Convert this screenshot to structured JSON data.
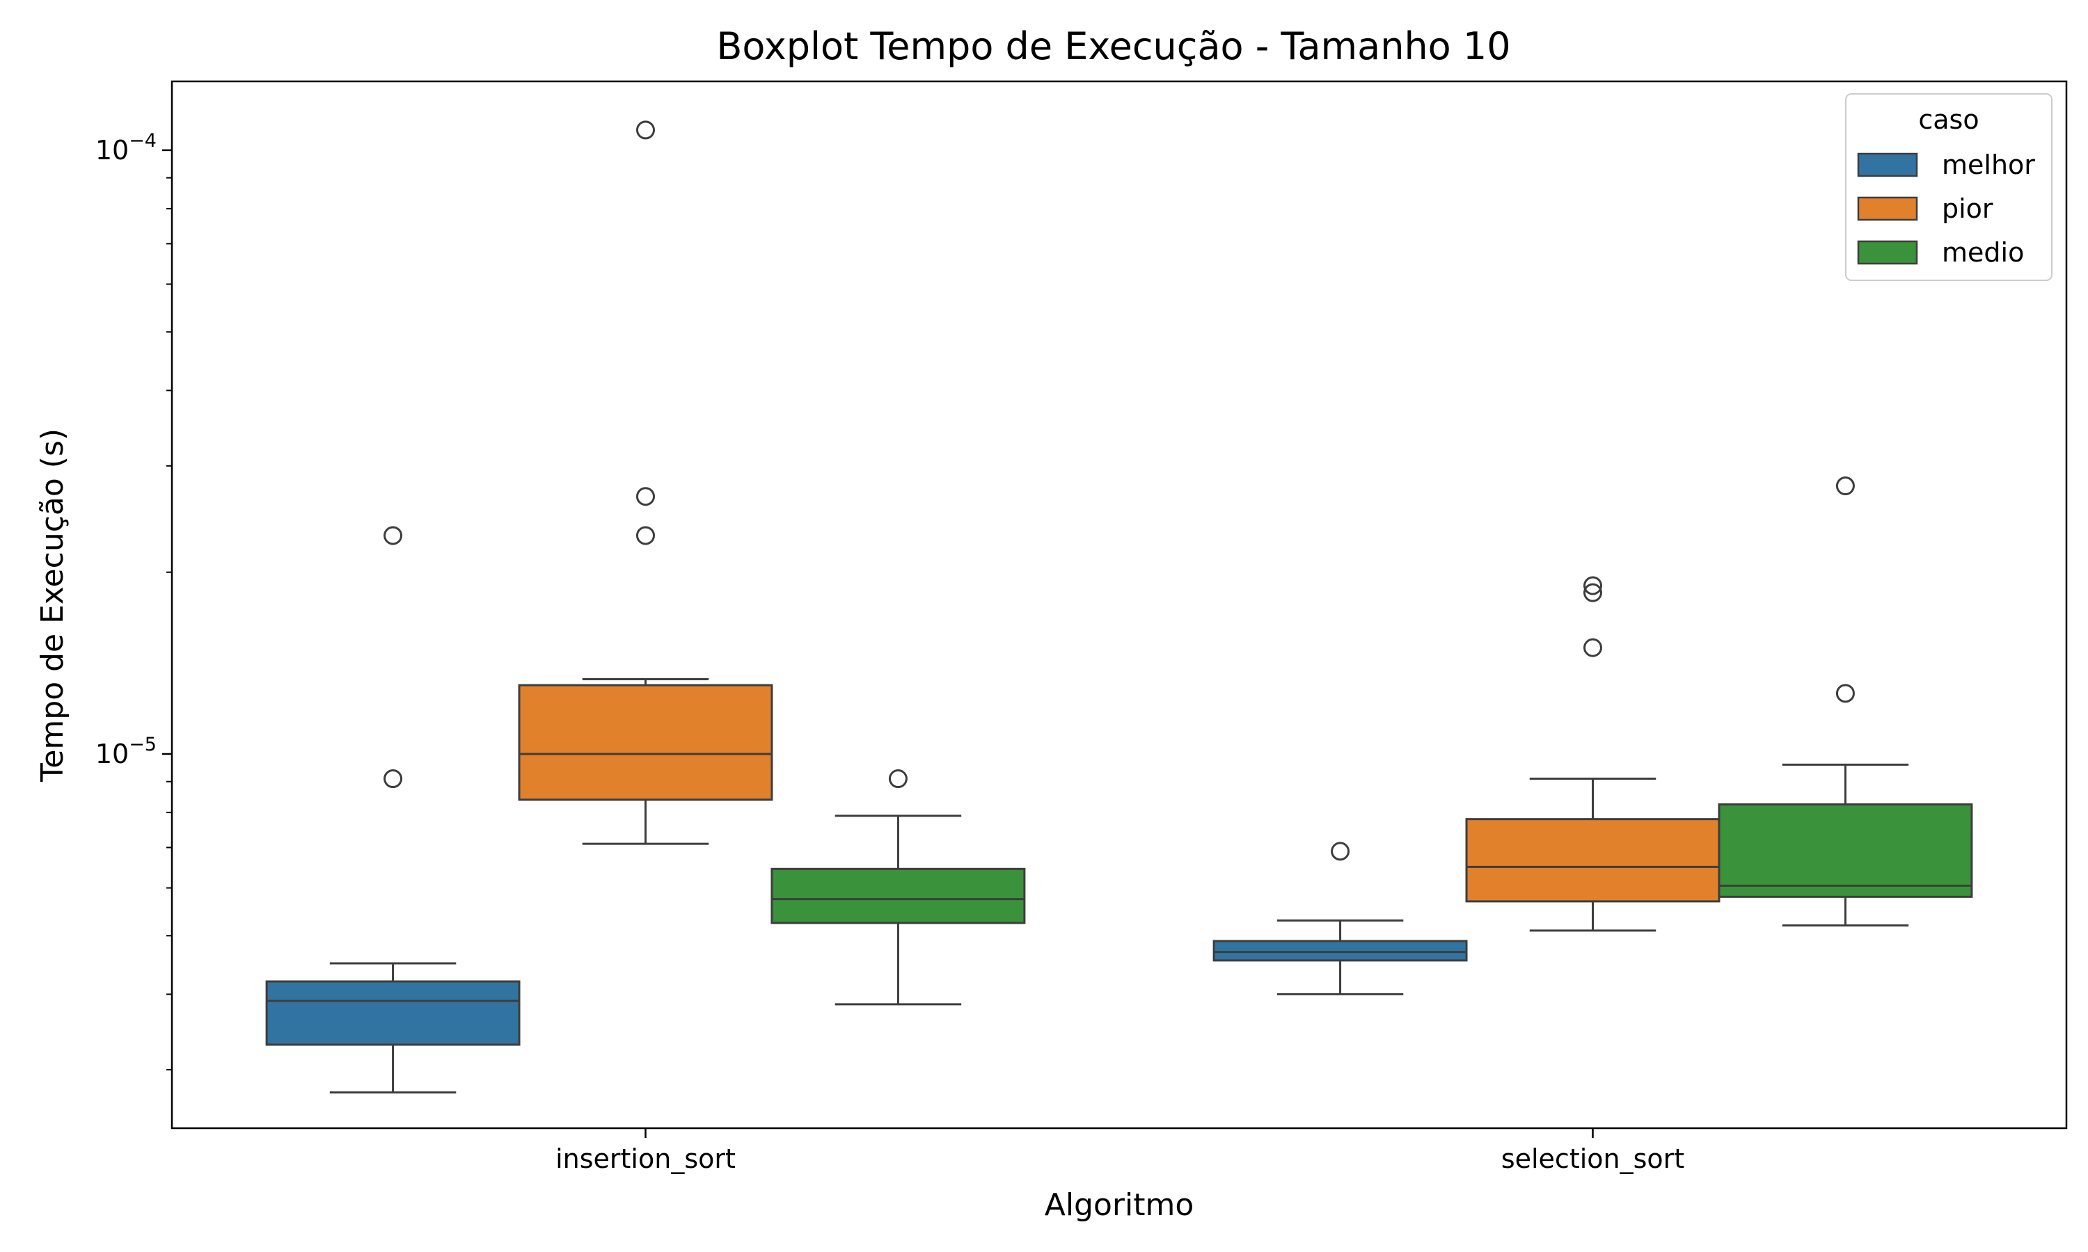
{
  "chart_data": {
    "type": "boxplot",
    "title": "Boxplot Tempo de Execução - Tamanho 10",
    "xlabel": "Algoritmo",
    "ylabel": "Tempo de Execução (s)",
    "yscale": "log",
    "ylim": [
      2.4e-06,
      0.00013
    ],
    "y_ticks": [
      {
        "base": "10",
        "exp": "−4",
        "value": 0.0001
      },
      {
        "base": "10",
        "exp": "−5",
        "value": 1e-05
      }
    ],
    "categories": [
      "insertion_sort",
      "selection_sort"
    ],
    "legend": {
      "title": "caso",
      "position": "top-right"
    },
    "grid": false,
    "series": [
      {
        "name": "melhor",
        "color": "#3274a1",
        "boxes": [
          {
            "whislo": 2.75e-06,
            "q1": 3.3e-06,
            "med": 3.9e-06,
            "q3": 4.2e-06,
            "whishi": 4.5e-06,
            "fliers": [
              9.1e-06,
              2.3e-05
            ]
          },
          {
            "whislo": 4e-06,
            "q1": 4.55e-06,
            "med": 4.7e-06,
            "q3": 4.9e-06,
            "whishi": 5.3e-06,
            "fliers": [
              6.9e-06
            ]
          }
        ]
      },
      {
        "name": "pior",
        "color": "#e1812c",
        "boxes": [
          {
            "whislo": 7.1e-06,
            "q1": 8.4e-06,
            "med": 1e-05,
            "q3": 1.3e-05,
            "whishi": 1.33e-05,
            "fliers": [
              2.3e-05,
              2.67e-05,
              0.000108
            ]
          },
          {
            "whislo": 5.1e-06,
            "q1": 5.7e-06,
            "med": 6.5e-06,
            "q3": 7.8e-06,
            "whishi": 9.1e-06,
            "fliers": [
              1.5e-05,
              1.85e-05,
              1.9e-05
            ]
          }
        ]
      },
      {
        "name": "medio",
        "color": "#3a923a",
        "boxes": [
          {
            "whislo": 3.85e-06,
            "q1": 5.25e-06,
            "med": 5.75e-06,
            "q3": 6.45e-06,
            "whishi": 7.9e-06,
            "fliers": [
              9.1e-06
            ]
          },
          {
            "whislo": 5.2e-06,
            "q1": 5.8e-06,
            "med": 6.05e-06,
            "q3": 8.25e-06,
            "whishi": 9.6e-06,
            "fliers": [
              1.26e-05,
              2.78e-05
            ]
          }
        ]
      }
    ]
  }
}
